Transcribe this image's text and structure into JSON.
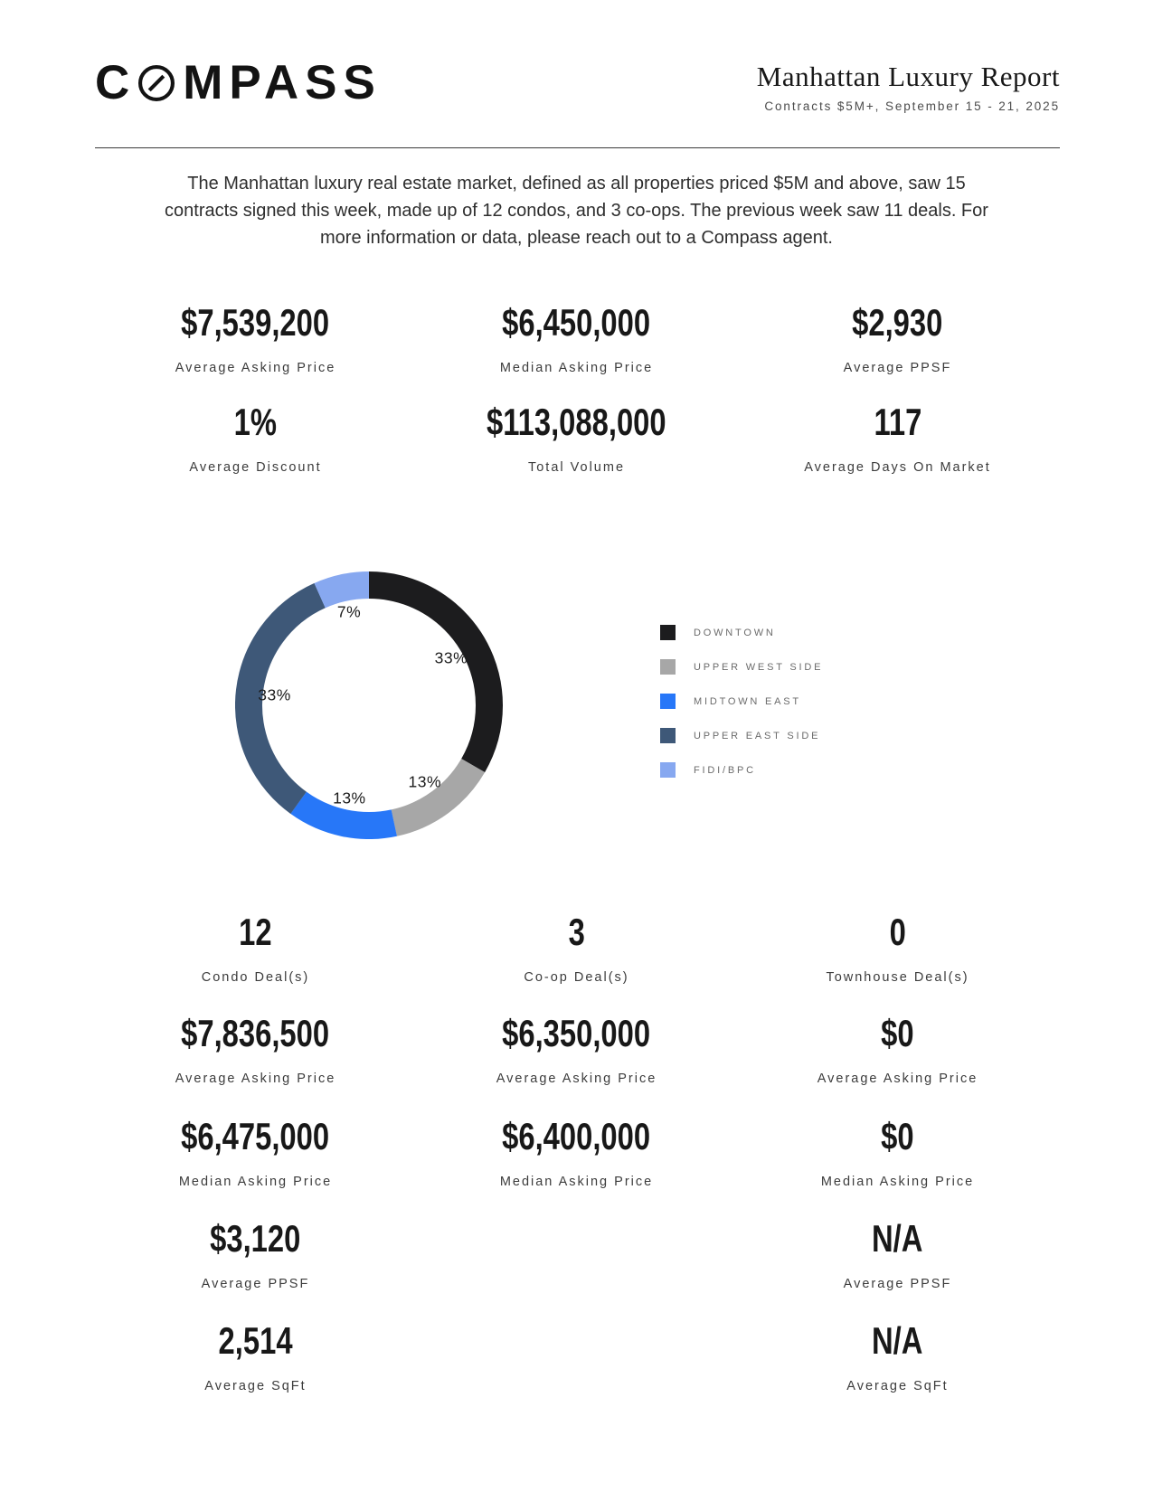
{
  "header": {
    "logo": {
      "pre": "C",
      "post": "MPASS"
    },
    "title": "Manhattan Luxury Report",
    "subtitle": "Contracts $5M+, September 15 - 21, 2025"
  },
  "intro": "The Manhattan luxury real estate market, defined as all properties priced $5M and above, saw 15 contracts signed this week, made up of 12 condos, and 3 co-ops. The previous week saw 11 deals. For more information or data, please reach out to a Compass agent.",
  "top_stats": {
    "rows": [
      {
        "cells": [
          {
            "value": "$7,539,200",
            "label": "Average Asking Price"
          },
          {
            "value": "$6,450,000",
            "label": "Median Asking Price"
          },
          {
            "value": "$2,930",
            "label": "Average PPSF"
          }
        ]
      },
      {
        "cells": [
          {
            "value": "1%",
            "label": "Average Discount"
          },
          {
            "value": "$113,088,000",
            "label": "Total Volume"
          },
          {
            "value": "117",
            "label": "Average Days On Market"
          }
        ]
      }
    ]
  },
  "chart_data": {
    "type": "pie",
    "subtype": "donut",
    "title": "Contracts signed by neighborhood (% of 15 deals)",
    "legend_position": "right",
    "start_angle_deg": 0,
    "direction": "clockwise",
    "slices": [
      {
        "label": "DOWNTOWN",
        "pct": 33.3,
        "value_display": "33%",
        "color": "#1c1c1e"
      },
      {
        "label": "UPPER WEST SIDE",
        "pct": 13.3,
        "value_display": "13%",
        "color": "#a7a7a7"
      },
      {
        "label": "MIDTOWN EAST",
        "pct": 13.3,
        "value_display": "13%",
        "color": "#2777f8"
      },
      {
        "label": "UPPER EAST SIDE",
        "pct": 33.3,
        "value_display": "33%",
        "color": "#3e5878"
      },
      {
        "label": "FIDI/BPC",
        "pct": 6.7,
        "value_display": "7%",
        "color": "#87a8f0"
      }
    ]
  },
  "bottom_stats": {
    "rows": [
      {
        "cells": [
          {
            "value": "12",
            "label": "Condo Deal(s)"
          },
          {
            "value": "3",
            "label": "Co-op Deal(s)"
          },
          {
            "value": "0",
            "label": "Townhouse Deal(s)"
          }
        ]
      },
      {
        "cells": [
          {
            "value": "$7,836,500",
            "label": "Average Asking Price"
          },
          {
            "value": "$6,350,000",
            "label": "Average Asking Price"
          },
          {
            "value": "$0",
            "label": "Average Asking Price"
          }
        ]
      },
      {
        "cells": [
          {
            "value": "$6,475,000",
            "label": "Median Asking Price"
          },
          {
            "value": "$6,400,000",
            "label": "Median Asking Price"
          },
          {
            "value": "$0",
            "label": "Median Asking Price"
          }
        ]
      },
      {
        "cells": [
          {
            "value": "$3,120",
            "label": "Average PPSF"
          },
          null,
          {
            "value": "N/A",
            "label": "Average PPSF"
          }
        ]
      },
      {
        "cells": [
          {
            "value": "2,514",
            "label": "Average SqFt"
          },
          null,
          {
            "value": "N/A",
            "label": "Average SqFt"
          }
        ]
      }
    ]
  }
}
